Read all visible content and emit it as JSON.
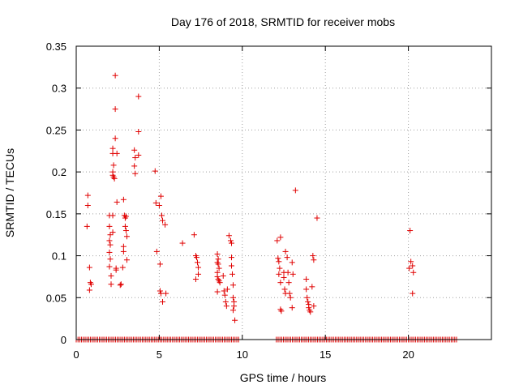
{
  "chart_data": {
    "type": "scatter",
    "title": "Day 176 of 2018, SRMTID for receiver mobs",
    "xlabel": "GPS time / hours",
    "ylabel": "SRMTID / TECUs",
    "xlim": [
      0,
      25
    ],
    "ylim": [
      0,
      0.35
    ],
    "xticks": [
      0,
      5,
      10,
      15,
      20
    ],
    "yticks": [
      0,
      0.05,
      0.1,
      0.15,
      0.2,
      0.25,
      0.3,
      0.35
    ],
    "xtick_labels": [
      "0",
      "5",
      "10",
      "15",
      "20"
    ],
    "ytick_labels": [
      "0",
      "0.05",
      "0.1",
      "0.15",
      "0.2",
      "0.25",
      "0.3",
      "0.35"
    ],
    "grid": true,
    "color": "#e00000",
    "marker": "+",
    "zero_bands": [
      [
        0.0,
        9.85
      ],
      [
        12.05,
        23.0
      ]
    ],
    "points": [
      [
        0.7,
        0.172
      ],
      [
        0.7,
        0.16
      ],
      [
        0.65,
        0.135
      ],
      [
        0.8,
        0.086
      ],
      [
        0.85,
        0.068
      ],
      [
        0.9,
        0.066
      ],
      [
        0.8,
        0.059
      ],
      [
        2.0,
        0.148
      ],
      [
        2.0,
        0.135
      ],
      [
        2.05,
        0.125
      ],
      [
        2.0,
        0.118
      ],
      [
        2.05,
        0.113
      ],
      [
        2.0,
        0.104
      ],
      [
        2.05,
        0.096
      ],
      [
        2.0,
        0.087
      ],
      [
        2.1,
        0.076
      ],
      [
        2.1,
        0.066
      ],
      [
        2.2,
        0.228
      ],
      [
        2.2,
        0.222
      ],
      [
        2.25,
        0.208
      ],
      [
        2.2,
        0.2
      ],
      [
        2.2,
        0.196
      ],
      [
        2.25,
        0.194
      ],
      [
        2.3,
        0.192
      ],
      [
        2.35,
        0.24
      ],
      [
        2.35,
        0.275
      ],
      [
        2.35,
        0.315
      ],
      [
        2.45,
        0.222
      ],
      [
        2.45,
        0.164
      ],
      [
        2.4,
        0.085
      ],
      [
        2.4,
        0.083
      ],
      [
        2.2,
        0.128
      ],
      [
        2.2,
        0.148
      ],
      [
        2.65,
        0.065
      ],
      [
        2.7,
        0.066
      ],
      [
        2.8,
        0.086
      ],
      [
        2.85,
        0.105
      ],
      [
        2.85,
        0.111
      ],
      [
        2.85,
        0.167
      ],
      [
        2.9,
        0.148
      ],
      [
        2.95,
        0.145
      ],
      [
        3.0,
        0.147
      ],
      [
        2.95,
        0.135
      ],
      [
        3.0,
        0.13
      ],
      [
        3.05,
        0.123
      ],
      [
        3.05,
        0.095
      ],
      [
        3.5,
        0.226
      ],
      [
        3.5,
        0.207
      ],
      [
        3.55,
        0.198
      ],
      [
        3.55,
        0.217
      ],
      [
        3.75,
        0.29
      ],
      [
        3.75,
        0.248
      ],
      [
        3.75,
        0.22
      ],
      [
        4.75,
        0.201
      ],
      [
        4.8,
        0.163
      ],
      [
        4.85,
        0.105
      ],
      [
        5.0,
        0.16
      ],
      [
        5.1,
        0.171
      ],
      [
        5.05,
        0.09
      ],
      [
        5.05,
        0.058
      ],
      [
        5.1,
        0.055
      ],
      [
        5.2,
        0.045
      ],
      [
        5.15,
        0.148
      ],
      [
        5.2,
        0.142
      ],
      [
        5.35,
        0.137
      ],
      [
        5.4,
        0.055
      ],
      [
        6.4,
        0.115
      ],
      [
        7.1,
        0.125
      ],
      [
        7.2,
        0.1
      ],
      [
        7.25,
        0.098
      ],
      [
        7.3,
        0.092
      ],
      [
        7.35,
        0.086
      ],
      [
        7.35,
        0.078
      ],
      [
        7.2,
        0.072
      ],
      [
        8.5,
        0.102
      ],
      [
        8.55,
        0.096
      ],
      [
        8.5,
        0.092
      ],
      [
        8.55,
        0.09
      ],
      [
        8.6,
        0.085
      ],
      [
        8.5,
        0.08
      ],
      [
        8.5,
        0.075
      ],
      [
        8.55,
        0.072
      ],
      [
        8.6,
        0.07
      ],
      [
        8.65,
        0.068
      ],
      [
        8.5,
        0.057
      ],
      [
        8.85,
        0.076
      ],
      [
        8.9,
        0.058
      ],
      [
        8.95,
        0.053
      ],
      [
        9.0,
        0.045
      ],
      [
        9.05,
        0.04
      ],
      [
        9.1,
        0.06
      ],
      [
        9.2,
        0.124
      ],
      [
        9.3,
        0.118
      ],
      [
        9.35,
        0.115
      ],
      [
        9.35,
        0.098
      ],
      [
        9.35,
        0.088
      ],
      [
        9.4,
        0.078
      ],
      [
        9.45,
        0.065
      ],
      [
        9.45,
        0.05
      ],
      [
        9.5,
        0.045
      ],
      [
        9.5,
        0.04
      ],
      [
        9.45,
        0.035
      ],
      [
        9.55,
        0.023
      ],
      [
        12.1,
        0.118
      ],
      [
        12.15,
        0.097
      ],
      [
        12.2,
        0.093
      ],
      [
        12.25,
        0.085
      ],
      [
        12.2,
        0.078
      ],
      [
        12.3,
        0.068
      ],
      [
        12.3,
        0.036
      ],
      [
        12.35,
        0.034
      ],
      [
        12.3,
        0.122
      ],
      [
        12.5,
        0.08
      ],
      [
        12.5,
        0.074
      ],
      [
        12.55,
        0.06
      ],
      [
        12.6,
        0.055
      ],
      [
        12.6,
        0.105
      ],
      [
        12.7,
        0.098
      ],
      [
        12.75,
        0.08
      ],
      [
        12.8,
        0.068
      ],
      [
        12.85,
        0.055
      ],
      [
        12.9,
        0.05
      ],
      [
        13.0,
        0.092
      ],
      [
        13.05,
        0.078
      ],
      [
        13.0,
        0.038
      ],
      [
        13.2,
        0.178
      ],
      [
        13.85,
        0.072
      ],
      [
        13.85,
        0.06
      ],
      [
        13.9,
        0.05
      ],
      [
        13.95,
        0.045
      ],
      [
        14.0,
        0.042
      ],
      [
        14.0,
        0.038
      ],
      [
        14.05,
        0.035
      ],
      [
        14.1,
        0.033
      ],
      [
        14.2,
        0.063
      ],
      [
        14.25,
        0.1
      ],
      [
        14.3,
        0.095
      ],
      [
        14.3,
        0.04
      ],
      [
        14.5,
        0.145
      ],
      [
        20.1,
        0.13
      ],
      [
        20.05,
        0.085
      ],
      [
        20.15,
        0.093
      ],
      [
        20.25,
        0.088
      ],
      [
        20.3,
        0.08
      ],
      [
        20.25,
        0.055
      ]
    ]
  }
}
